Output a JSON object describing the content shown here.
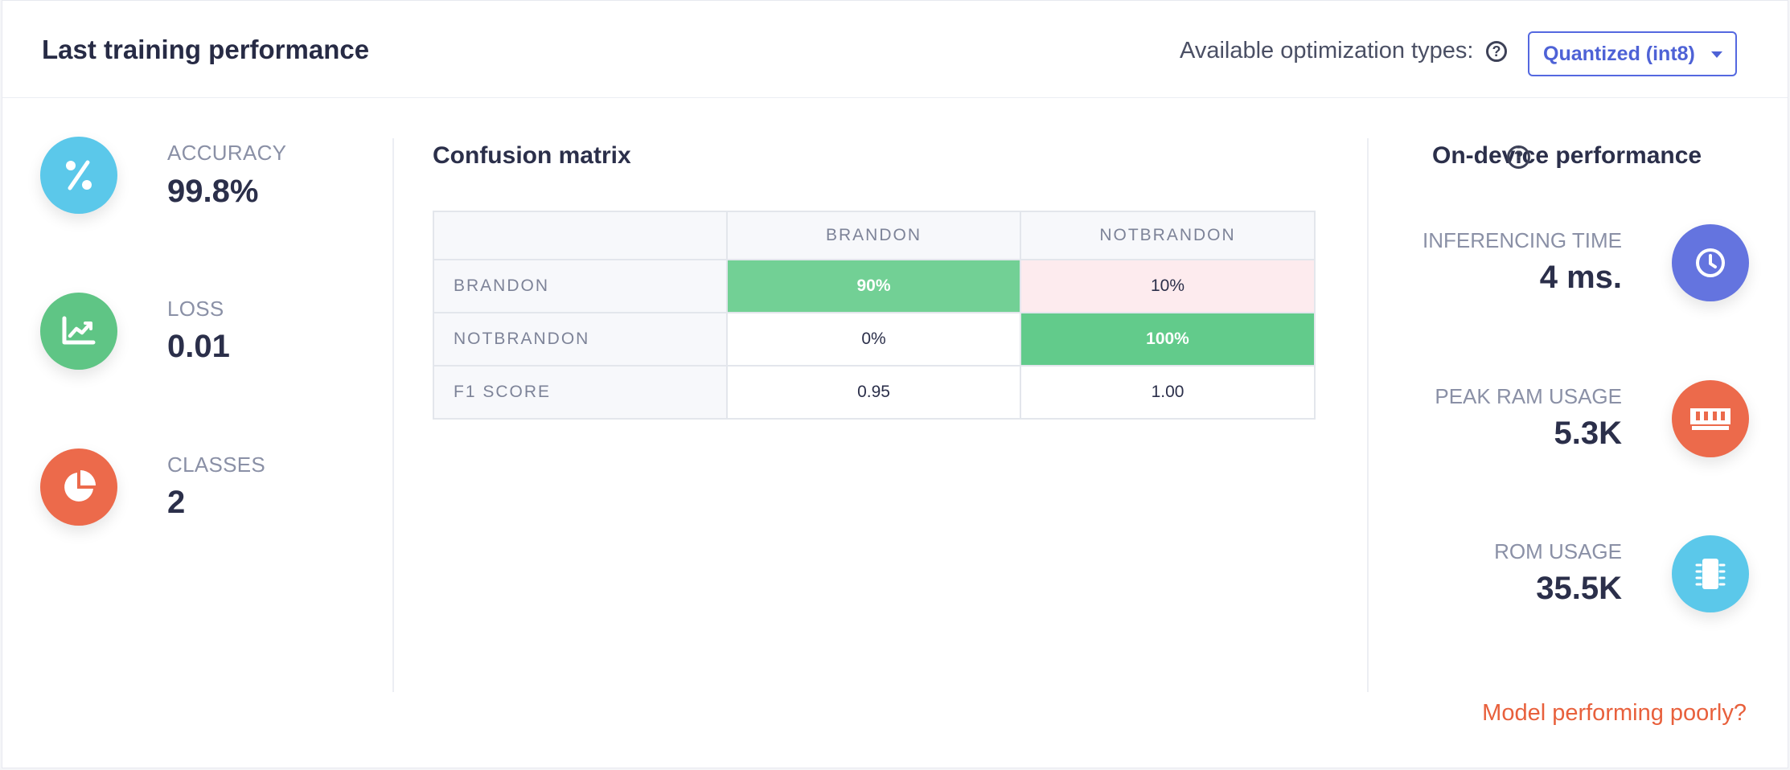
{
  "header": {
    "title": "Last training performance",
    "optimization_label": "Available optimization types:",
    "optimization_selected": "Quantized (int8)"
  },
  "metrics": [
    {
      "label": "ACCURACY",
      "value": "99.8%",
      "icon": "percent-icon",
      "color": "#5bc8ea"
    },
    {
      "label": "LOSS",
      "value": "0.01",
      "icon": "chart-line-icon",
      "color": "#5fc585"
    },
    {
      "label": "CLASSES",
      "value": "2",
      "icon": "pie-chart-icon",
      "color": "#ec6a4b"
    }
  ],
  "confusion_matrix": {
    "title": "Confusion matrix",
    "columns": [
      "BRANDON",
      "NOTBRANDON"
    ],
    "rows": [
      {
        "label": "BRANDON",
        "cells": [
          "90%",
          "10%"
        ]
      },
      {
        "label": "NOTBRANDON",
        "cells": [
          "0%",
          "100%"
        ]
      },
      {
        "label": "F1 SCORE",
        "cells": [
          "0.95",
          "1.00"
        ]
      }
    ]
  },
  "on_device": {
    "title": "On-device performance",
    "items": [
      {
        "label": "INFERENCING TIME",
        "value": "4 ms.",
        "icon": "clock-icon",
        "color": "#6474df"
      },
      {
        "label": "PEAK RAM USAGE",
        "value": "5.3K",
        "icon": "ram-icon",
        "color": "#ec6a4b"
      },
      {
        "label": "ROM USAGE",
        "value": "35.5K",
        "icon": "chip-icon",
        "color": "#5bc8ea"
      }
    ]
  },
  "link": {
    "label": "Model performing poorly?"
  },
  "colors": {
    "cm_good_strong": "#62cb8b",
    "cm_good": "#72d095",
    "cm_bad": "#fdebee"
  }
}
